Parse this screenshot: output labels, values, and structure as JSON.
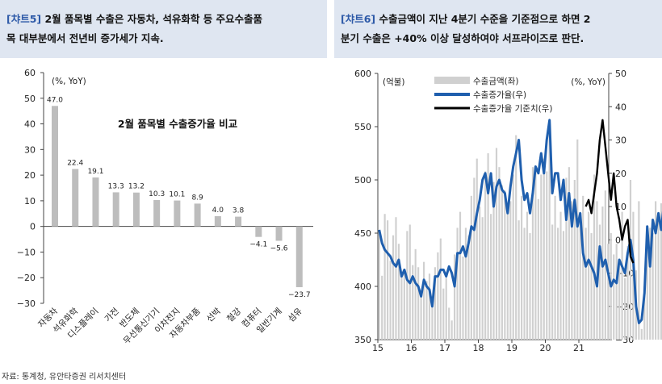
{
  "left_header": {
    "tag": "[챠트5]",
    "line1": "2월 품목별 수출은 자동차, 석유화학 등 주요수출품",
    "line2": "목 대부분에서 전년비 증가세가 지속."
  },
  "right_header": {
    "tag": "[챠트6]",
    "line1": "수출금액이 지난 4분기 수준을 기준점으로 하면 2",
    "line2": "분기 수출은 +40% 이상 달성하여야 서프라이즈로 판단."
  },
  "source": "자료: 통계청, 유안타증권 리서치센터",
  "colors": {
    "bar": "#bdbdbd",
    "header_bg": "#dfe6f1",
    "tag": "#2e5aa8",
    "growth_line": "#1f5fae",
    "baseline_line": "#000000"
  },
  "chart_data": [
    {
      "type": "bar",
      "title": "2월 품목별 수출증가율 비교",
      "unit": "(%, YoY)",
      "categories": [
        "자동차",
        "석유화학",
        "디스플레이",
        "가전",
        "반도체",
        "무선통신기기",
        "이차전지",
        "자동차부품",
        "선박",
        "철강",
        "컴퓨터",
        "일반기계",
        "섬유"
      ],
      "values": [
        47.0,
        22.4,
        19.1,
        13.3,
        13.2,
        10.3,
        10.1,
        8.9,
        4.0,
        3.8,
        -4.1,
        -5.6,
        -23.7
      ],
      "value_labels": [
        "47.0",
        "22.4",
        "19.1",
        "13.3",
        "13.2",
        "10.3",
        "10.1",
        "8.9",
        "4.0",
        "3.8",
        "−4.1",
        "−5.6",
        "−23.7"
      ],
      "ylim": [
        -30,
        60
      ],
      "yticks": [
        "60",
        "50",
        "40",
        "30",
        "20",
        "10",
        "0",
        "−10",
        "−20",
        "−30"
      ],
      "grid": false
    },
    {
      "type": "line",
      "left_unit": "(억불)",
      "right_unit": "(%, YoY)",
      "legend": [
        "수출금액(좌)",
        "수출증가율(우)",
        "수출증가율 기준치(우)"
      ],
      "legend_position": "top-left",
      "x_ticks": [
        "15",
        "16",
        "17",
        "18",
        "19",
        "20",
        "21"
      ],
      "x_start_year": 2015,
      "ylim_left": [
        350,
        600
      ],
      "yticks_left": [
        "600",
        "550",
        "500",
        "450",
        "400",
        "350"
      ],
      "ylim_right": [
        -30,
        50
      ],
      "yticks_right": [
        "50",
        "40",
        "30",
        "20",
        "10",
        "0",
        "−10",
        "−20",
        "−30"
      ],
      "series": [
        {
          "name": "수출금액(좌)",
          "type": "bar",
          "values": [
            452,
            410,
            468,
            462,
            424,
            448,
            465,
            440,
            410,
            415,
            452,
            458,
            420,
            435,
            418,
            392,
            423,
            405,
            412,
            385,
            418,
            432,
            445,
            398,
            408,
            380,
            368,
            430,
            455,
            470,
            428,
            455,
            448,
            485,
            502,
            520,
            475,
            465,
            508,
            525,
            468,
            498,
            530,
            512,
            495,
            490,
            470,
            480,
            505,
            542,
            462,
            485,
            455,
            470,
            450,
            512,
            512,
            482,
            505,
            520,
            508,
            552,
            458,
            485,
            455,
            470,
            452,
            502,
            512,
            480,
            500,
            538,
            468,
            485,
            455,
            470,
            450,
            505,
            480,
            458,
            475,
            490,
            440,
            450,
            430,
            440,
            420,
            470,
            408,
            438,
            500,
            470,
            415,
            480,
            360,
            400,
            440,
            455,
            450,
            480,
            468,
            478,
            455,
            488,
            480,
            520,
            455,
            485,
            492,
            510,
            505,
            522,
            455,
            498,
            488,
            505,
            515,
            515
          ]
        },
        {
          "name": "수출증가율(우)",
          "type": "line",
          "values": [
            3,
            -1,
            -3,
            -4,
            -5,
            -7,
            -8,
            -6,
            -11,
            -9,
            -12,
            -13,
            -11,
            -13,
            -14,
            -17,
            -12,
            -14,
            -15,
            -20,
            -11,
            -11,
            -9,
            -9,
            -11,
            -8,
            -10,
            -14,
            -4,
            -4,
            -2,
            -5,
            -1,
            4,
            3,
            8,
            12,
            18,
            20,
            14,
            20,
            10,
            16,
            18,
            15,
            14,
            8,
            16,
            22,
            26,
            30,
            18,
            12,
            14,
            8,
            14,
            22,
            20,
            26,
            20,
            30,
            36,
            14,
            20,
            20,
            12,
            18,
            6,
            14,
            4,
            12,
            4,
            8,
            -4,
            -8,
            -6,
            -8,
            -10,
            -14,
            -2,
            -8,
            -6,
            -10,
            -14,
            -12,
            -13,
            -6,
            -8,
            -10,
            -4,
            0,
            -6,
            -20,
            -25,
            -24,
            -16,
            4,
            -8,
            6,
            2,
            8,
            3,
            11,
            -2,
            6,
            3,
            10,
            15
          ],
          "color": "#1f5fae"
        },
        {
          "name": "수출증가율 기준치(우)",
          "type": "line",
          "values": [
            10,
            12,
            8,
            14,
            20,
            30,
            36,
            28,
            20,
            12,
            20,
            10,
            6,
            0,
            4,
            6,
            -5,
            -7
          ],
          "color": "#000000"
        }
      ]
    }
  ]
}
